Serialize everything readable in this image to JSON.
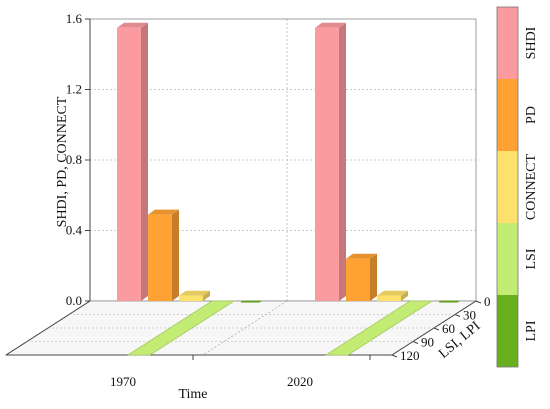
{
  "chart_data": {
    "type": "bar",
    "categories": [
      "1970",
      "2020"
    ],
    "xlabel": "Time",
    "ylabel": "SHDI, PD, CONNECT",
    "ylim": [
      0,
      1.6
    ],
    "yticks": [
      "0.0",
      "0.4",
      "0.8",
      "1.2",
      "1.6"
    ],
    "zlabel": "LSI, LPI",
    "zlim": [
      0,
      120
    ],
    "zticks": [
      "0",
      "30",
      "60",
      "90",
      "120"
    ],
    "grid": true,
    "legend_position": "right",
    "series": [
      {
        "name": "SHDI",
        "axis": "left",
        "color": "#fb9a9f",
        "values": [
          1.55,
          1.55
        ]
      },
      {
        "name": "PD",
        "axis": "left",
        "color": "#ffa233",
        "values": [
          0.49,
          0.24
        ]
      },
      {
        "name": "CONNECT",
        "axis": "left",
        "color": "#fde16a",
        "values": [
          0.03,
          0.03
        ]
      },
      {
        "name": "LSI",
        "axis": "depth",
        "color": "#c3ec74",
        "values": [
          120,
          120
        ]
      },
      {
        "name": "LPI",
        "axis": "depth",
        "color": "#6ab01e",
        "values": [
          2,
          2
        ]
      }
    ]
  }
}
